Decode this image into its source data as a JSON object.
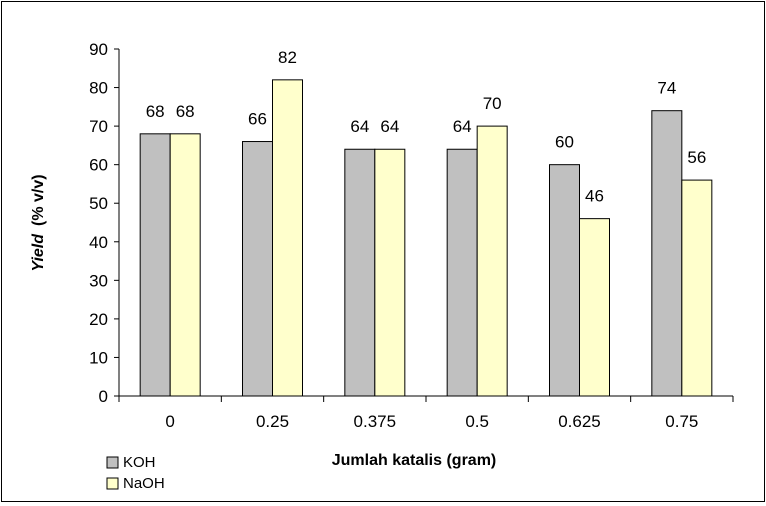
{
  "chart_data": {
    "type": "bar",
    "title": "",
    "xlabel": "Jumlah katalis (gram)",
    "ylabel_italic": "Yield",
    "ylabel_rest": "(% v/v)",
    "categories": [
      "0",
      "0.25",
      "0.375",
      "0.5",
      "0.625",
      "0.75"
    ],
    "series": [
      {
        "name": "KOH",
        "values": [
          68,
          66,
          64,
          64,
          60,
          74
        ],
        "color": "#C0C0C0"
      },
      {
        "name": "NaOH",
        "values": [
          68,
          82,
          64,
          70,
          46,
          56
        ],
        "color": "#FFFFCC"
      }
    ],
    "ylim": [
      0,
      90
    ],
    "yticks": [
      "0",
      "10",
      "20",
      "30",
      "40",
      "50",
      "60",
      "70",
      "80",
      "90"
    ],
    "grid": false,
    "data_labels": true,
    "legend": "bottom-left"
  }
}
